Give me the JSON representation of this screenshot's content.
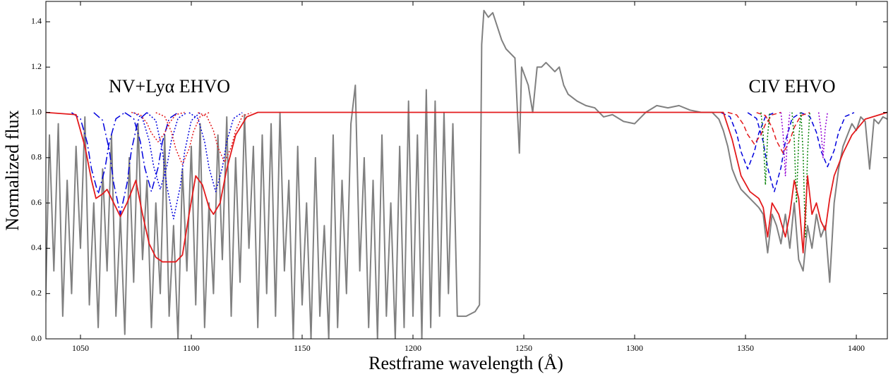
{
  "chart_data": {
    "type": "line",
    "xlabel": "Restframe wavelength (Å)",
    "ylabel": "Normalized flux",
    "annotations": [
      "NV+Lyα EHVO",
      "CIV EHVO"
    ],
    "xlim": [
      1034.4,
      1414
    ],
    "ylim": [
      0,
      1.49
    ],
    "xticks": [
      1050,
      1100,
      1150,
      1200,
      1250,
      1300,
      1350,
      1400
    ],
    "yticks": [
      {
        "value": 0,
        "label": "0.0"
      },
      0.2,
      0.4,
      0.6,
      0.8,
      {
        "value": 1,
        "label": "1.0"
      },
      1.2,
      1.4
    ],
    "series": [
      {
        "color": "#808080",
        "dash": "solid",
        "x": [
          1034,
          1036,
          1038,
          1040,
          1042,
          1044,
          1046,
          1048,
          1050,
          1052,
          1054,
          1056,
          1058,
          1060,
          1062,
          1064,
          1066,
          1068,
          1070,
          1072,
          1074,
          1076,
          1078,
          1080,
          1082,
          1084,
          1086,
          1088,
          1090,
          1092,
          1094,
          1096,
          1098,
          1100,
          1102,
          1104,
          1106,
          1108,
          1110,
          1112,
          1114,
          1116,
          1118,
          1120,
          1122,
          1124,
          1126,
          1128,
          1130,
          1132,
          1134,
          1136,
          1138,
          1140,
          1142,
          1144,
          1146,
          1148,
          1150,
          1152,
          1154,
          1156,
          1158,
          1160,
          1162,
          1164,
          1166,
          1168,
          1170,
          1172,
          1174,
          1176,
          1178,
          1180,
          1182,
          1184,
          1186,
          1188,
          1190,
          1192,
          1194,
          1196,
          1198,
          1200,
          1202,
          1204,
          1206,
          1208,
          1210,
          1212,
          1214,
          1216,
          1218,
          1220,
          1224,
          1228,
          1230,
          1231,
          1232,
          1234,
          1236,
          1238,
          1240,
          1242,
          1244,
          1246,
          1248,
          1249,
          1252,
          1254,
          1256,
          1258,
          1260,
          1262,
          1264,
          1266,
          1268,
          1270,
          1274,
          1278,
          1282,
          1286,
          1290,
          1295,
          1300,
          1305,
          1310,
          1315,
          1320,
          1325,
          1330,
          1335,
          1338,
          1340,
          1342,
          1344,
          1346,
          1348,
          1350,
          1352,
          1354,
          1356,
          1358,
          1360,
          1362,
          1364,
          1366,
          1368,
          1370,
          1372,
          1374,
          1376,
          1378,
          1380,
          1382,
          1384,
          1386,
          1388,
          1390,
          1392,
          1394,
          1396,
          1398,
          1400,
          1402,
          1404,
          1406,
          1408,
          1410,
          1412,
          1414
        ],
        "values": [
          0.05,
          0.9,
          0.3,
          0.95,
          0.1,
          0.7,
          0.2,
          0.85,
          0.4,
          0.98,
          0.15,
          0.6,
          0.05,
          0.75,
          0.3,
          0.9,
          0.1,
          0.55,
          0.02,
          0.8,
          0.25,
          0.95,
          0.35,
          0.7,
          0.05,
          0.6,
          0.2,
          0.9,
          0.1,
          0.5,
          0.0,
          0.75,
          0.3,
          0.85,
          0.15,
          0.95,
          0.05,
          0.6,
          0.2,
          0.9,
          0.35,
          0.98,
          0.1,
          0.8,
          0.25,
          0.99,
          0.4,
          0.85,
          0.05,
          0.9,
          0.2,
          0.95,
          0.1,
          1.0,
          0.3,
          0.7,
          0.0,
          0.85,
          0.15,
          0.6,
          0.0,
          0.8,
          0.1,
          0.5,
          0.0,
          0.9,
          0.05,
          0.7,
          0.2,
          0.95,
          1.12,
          0.3,
          0.8,
          0.05,
          0.7,
          0.0,
          0.9,
          0.1,
          0.6,
          0.0,
          0.85,
          0.05,
          1.05,
          0.1,
          0.9,
          0.0,
          1.1,
          0.05,
          1.05,
          0.1,
          1.0,
          0.2,
          0.95,
          0.1,
          0.1,
          0.12,
          0.15,
          1.3,
          1.45,
          1.42,
          1.44,
          1.38,
          1.32,
          1.28,
          1.26,
          1.24,
          0.82,
          1.2,
          1.12,
          1.0,
          1.2,
          1.2,
          1.22,
          1.2,
          1.18,
          1.2,
          1.12,
          1.08,
          1.05,
          1.03,
          1.02,
          0.98,
          0.99,
          0.96,
          0.95,
          1.0,
          1.03,
          1.02,
          1.03,
          1.01,
          1.0,
          1.0,
          0.97,
          0.92,
          0.85,
          0.75,
          0.7,
          0.66,
          0.64,
          0.62,
          0.6,
          0.58,
          0.55,
          0.38,
          0.55,
          0.5,
          0.42,
          0.55,
          0.4,
          0.6,
          0.35,
          0.3,
          0.5,
          0.4,
          0.55,
          0.45,
          0.5,
          0.25,
          0.6,
          0.75,
          0.85,
          0.9,
          0.95,
          0.92,
          0.98,
          0.96,
          0.75,
          0.97,
          0.95,
          0.98,
          0.97
        ]
      },
      {
        "color": "#0000dd",
        "dash": "dashdot",
        "x": [
          1046,
          1050,
          1053,
          1055,
          1058,
          1061,
          1063,
          1066,
          1070
        ],
        "values": [
          0.999,
          0.972,
          0.868,
          0.749,
          0.64,
          0.749,
          0.868,
          0.972,
          0.999
        ]
      },
      {
        "color": "#0000dd",
        "dash": "dashdot",
        "x": [
          1056,
          1060,
          1063,
          1065,
          1068,
          1071,
          1073,
          1076,
          1080
        ],
        "values": [
          0.999,
          0.965,
          0.834,
          0.686,
          0.55,
          0.686,
          0.834,
          0.965,
          0.999
        ]
      },
      {
        "color": "#0000dd",
        "dash": "dashdot",
        "x": [
          1070,
          1074,
          1077,
          1079,
          1082,
          1085,
          1087,
          1090,
          1094
        ],
        "values": [
          0.999,
          0.973,
          0.871,
          0.756,
          0.65,
          0.756,
          0.871,
          0.973,
          0.999
        ]
      },
      {
        "color": "#0000dd",
        "dash": "dotted",
        "x": [
          1074,
          1078,
          1081,
          1083,
          1086,
          1089,
          1091,
          1094,
          1098
        ],
        "values": [
          0.999,
          0.974,
          0.875,
          0.763,
          0.66,
          0.763,
          0.875,
          0.974,
          0.999
        ]
      },
      {
        "color": "#0000dd",
        "dash": "dotted",
        "x": [
          1080,
          1084,
          1087,
          1089,
          1092,
          1095,
          1097,
          1100,
          1104
        ],
        "values": [
          0.999,
          0.964,
          0.827,
          0.672,
          0.53,
          0.672,
          0.827,
          0.964,
          0.999
        ]
      },
      {
        "color": "#0000dd",
        "dash": "dotted",
        "x": [
          1099,
          1103,
          1106,
          1108,
          1111,
          1114,
          1116,
          1119,
          1123
        ],
        "values": [
          0.999,
          0.973,
          0.871,
          0.756,
          0.65,
          0.756,
          0.871,
          0.973,
          0.999
        ]
      },
      {
        "color": "#e31a1c",
        "dash": "dotted",
        "x": [
          1073,
          1077,
          1080,
          1082,
          1085,
          1088,
          1090,
          1093,
          1097
        ],
        "values": [
          1.0,
          0.99,
          0.952,
          0.909,
          0.87,
          0.909,
          0.952,
          0.99,
          1.0
        ]
      },
      {
        "color": "#e31a1c",
        "dash": "dotted",
        "x": [
          1084,
          1088,
          1091,
          1093,
          1096,
          1099,
          1101,
          1104,
          1108
        ],
        "values": [
          0.999,
          0.982,
          0.915,
          0.839,
          0.77,
          0.839,
          0.915,
          0.982,
          0.999
        ]
      },
      {
        "color": "#e31a1c",
        "dash": "dotted",
        "x": [
          1103,
          1107,
          1110,
          1112,
          1115,
          1118,
          1120,
          1123,
          1127
        ],
        "values": [
          0.999,
          0.983,
          0.919,
          0.846,
          0.78,
          0.846,
          0.919,
          0.983,
          0.999
        ]
      },
      {
        "color": "#0000dd",
        "dash": "dashed",
        "x": [
          1339,
          1343,
          1346,
          1348,
          1351,
          1354,
          1356,
          1359,
          1363
        ],
        "values": [
          0.999,
          0.981,
          0.908,
          0.826,
          0.75,
          0.826,
          0.908,
          0.981,
          0.999
        ]
      },
      {
        "color": "#0000dd",
        "dash": "dashed",
        "x": [
          1351,
          1355,
          1358,
          1360,
          1363,
          1366,
          1368,
          1371,
          1375
        ],
        "values": [
          0.999,
          0.973,
          0.871,
          0.756,
          0.65,
          0.756,
          0.871,
          0.973,
          0.999
        ]
      },
      {
        "color": "#0000dd",
        "dash": "dashed",
        "x": [
          1375,
          1379,
          1382,
          1384,
          1387,
          1390,
          1392,
          1395,
          1399
        ],
        "values": [
          0.999,
          0.982,
          0.912,
          0.832,
          0.76,
          0.832,
          0.912,
          0.982,
          0.999
        ]
      },
      {
        "color": "#e31a1c",
        "dash": "dashed",
        "x": [
          1342,
          1346,
          1349,
          1351,
          1354,
          1357,
          1359,
          1362,
          1366
        ],
        "values": [
          1.0,
          0.989,
          0.948,
          0.902,
          0.86,
          0.902,
          0.948,
          0.989,
          1.0
        ]
      },
      {
        "color": "#e31a1c",
        "dash": "dashed",
        "x": [
          1355,
          1359,
          1362,
          1364,
          1367,
          1370,
          1372,
          1375,
          1379
        ],
        "values": [
          0.999,
          0.986,
          0.934,
          0.874,
          0.82,
          0.874,
          0.934,
          0.986,
          0.999
        ]
      },
      {
        "color": "#008000",
        "dash": "dotted",
        "x": [
          1357,
          1358,
          1359,
          1360,
          1361
        ],
        "values": [
          1.0,
          0.9,
          0.68,
          0.9,
          1.0
        ]
      },
      {
        "color": "#008000",
        "dash": "dotted",
        "x": [
          1371,
          1372,
          1373,
          1374,
          1375
        ],
        "values": [
          1.0,
          0.88,
          0.6,
          0.88,
          1.0
        ]
      },
      {
        "color": "#008000",
        "dash": "dotted",
        "x": [
          1375,
          1376,
          1377,
          1378,
          1379
        ],
        "values": [
          1.0,
          0.82,
          0.45,
          0.82,
          1.0
        ]
      },
      {
        "color": "#9400d3",
        "dash": "dotted",
        "x": [
          1366,
          1367,
          1368,
          1369,
          1370
        ],
        "values": [
          1.0,
          0.9,
          0.72,
          0.9,
          1.0
        ]
      },
      {
        "color": "#9400d3",
        "dash": "dotted",
        "x": [
          1383,
          1384,
          1385,
          1386,
          1387
        ],
        "values": [
          1.0,
          0.93,
          0.8,
          0.93,
          1.0
        ]
      },
      {
        "color": "#e31a1c",
        "dash": "solid",
        "x": [
          1034,
          1048,
          1052,
          1055,
          1057,
          1060,
          1062,
          1065,
          1068,
          1071,
          1075,
          1078,
          1081,
          1084,
          1087,
          1090,
          1093,
          1096,
          1099,
          1102,
          1105,
          1108,
          1110,
          1113,
          1116,
          1120,
          1125,
          1130,
          1340,
          1344,
          1348,
          1352,
          1356,
          1358,
          1360,
          1362,
          1365,
          1368,
          1370,
          1372,
          1374,
          1376,
          1378,
          1380,
          1382,
          1384,
          1386,
          1388,
          1390,
          1394,
          1398,
          1404,
          1414
        ],
        "values": [
          1.0,
          0.99,
          0.85,
          0.7,
          0.62,
          0.64,
          0.66,
          0.6,
          0.54,
          0.6,
          0.7,
          0.55,
          0.42,
          0.36,
          0.34,
          0.34,
          0.34,
          0.37,
          0.55,
          0.72,
          0.68,
          0.58,
          0.55,
          0.6,
          0.75,
          0.9,
          0.98,
          1.0,
          1.0,
          0.88,
          0.72,
          0.65,
          0.62,
          0.58,
          0.45,
          0.6,
          0.55,
          0.45,
          0.55,
          0.7,
          0.62,
          0.38,
          0.72,
          0.55,
          0.6,
          0.52,
          0.48,
          0.62,
          0.72,
          0.82,
          0.9,
          0.97,
          1.0
        ]
      }
    ]
  }
}
